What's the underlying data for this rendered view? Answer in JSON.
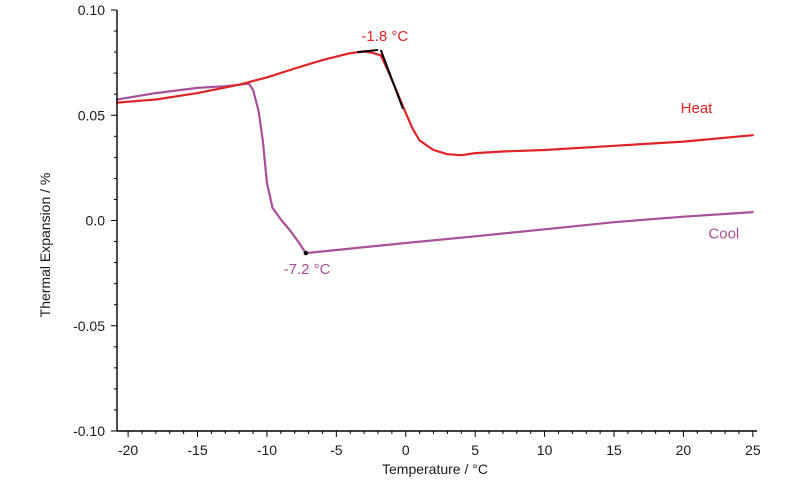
{
  "chart_data": {
    "type": "line",
    "title": "",
    "xlabel": "Temperature / °C",
    "ylabel": "Thermal Expansion / %",
    "xlim": [
      -20.8,
      25.3
    ],
    "ylim": [
      -0.1,
      0.1
    ],
    "x_ticks": [
      -20,
      -15,
      -10,
      -5,
      0,
      5,
      10,
      15,
      20,
      25
    ],
    "x_tick_labels": [
      "-20",
      "-15",
      "-10",
      "-5",
      "0",
      "5",
      "10",
      "15",
      "20",
      "25"
    ],
    "y_ticks": [
      0.1,
      0.05,
      0.0,
      -0.05,
      -0.1
    ],
    "y_tick_labels": [
      "0.10",
      "0.05",
      "0.0",
      "-0.05",
      "-0.10"
    ],
    "grid": false,
    "colors": {
      "heat": "#e02426",
      "cool": "#a8509a",
      "tangent": "#000000",
      "axis": "#000000"
    },
    "series": [
      {
        "name": "Heat",
        "color": "#e02426",
        "x": [
          -20.8,
          -18,
          -15,
          -12,
          -10,
          -8,
          -6,
          -4,
          -3,
          -2.5,
          -1.8,
          -1.2,
          -0.5,
          0,
          0.5,
          1,
          2,
          3,
          4,
          5,
          7,
          10,
          15,
          20,
          25
        ],
        "y": [
          0.056,
          0.0575,
          0.0605,
          0.0645,
          0.068,
          0.0722,
          0.0762,
          0.0795,
          0.0803,
          0.0798,
          0.0785,
          0.07,
          0.059,
          0.051,
          0.0435,
          0.038,
          0.0335,
          0.0315,
          0.031,
          0.032,
          0.0328,
          0.0335,
          0.0355,
          0.0375,
          0.0405
        ]
      },
      {
        "name": "Cool",
        "color": "#a8509a",
        "x": [
          -20.8,
          -18,
          -15,
          -13,
          -11.3,
          -11,
          -10.6,
          -10.3,
          -10,
          -9.6,
          -9,
          -8.3,
          -7.7,
          -7.2,
          -7.2,
          0,
          5,
          10,
          15,
          20,
          25
        ],
        "y": [
          0.0575,
          0.0605,
          0.063,
          0.0638,
          0.065,
          0.062,
          0.052,
          0.038,
          0.018,
          0.006,
          0.0005,
          -0.005,
          -0.0105,
          -0.0155,
          -0.0155,
          -0.0107,
          -0.0075,
          -0.0042,
          -0.0008,
          0.0018,
          0.004
        ]
      }
    ],
    "tangent_lines": [
      {
        "x": [
          -3.5,
          -2.0
        ],
        "y": [
          0.08,
          0.081
        ]
      },
      {
        "x": [
          -1.8,
          -0.2
        ],
        "y": [
          0.081,
          0.053
        ]
      }
    ],
    "markers": [
      {
        "x": -7.2,
        "y": -0.0155
      }
    ],
    "annotations": [
      {
        "text": "-1.8 °C",
        "x": -3.2,
        "y": 0.0853,
        "color": "#e02426"
      },
      {
        "text": "-7.2 °C",
        "x": -8.8,
        "y": -0.0255,
        "color": "#a8509a"
      },
      {
        "text": "Heat",
        "x": 19.8,
        "y": 0.051,
        "color": "#e02426"
      },
      {
        "text": "Cool",
        "x": 21.8,
        "y": -0.0085,
        "color": "#a8509a"
      }
    ]
  }
}
